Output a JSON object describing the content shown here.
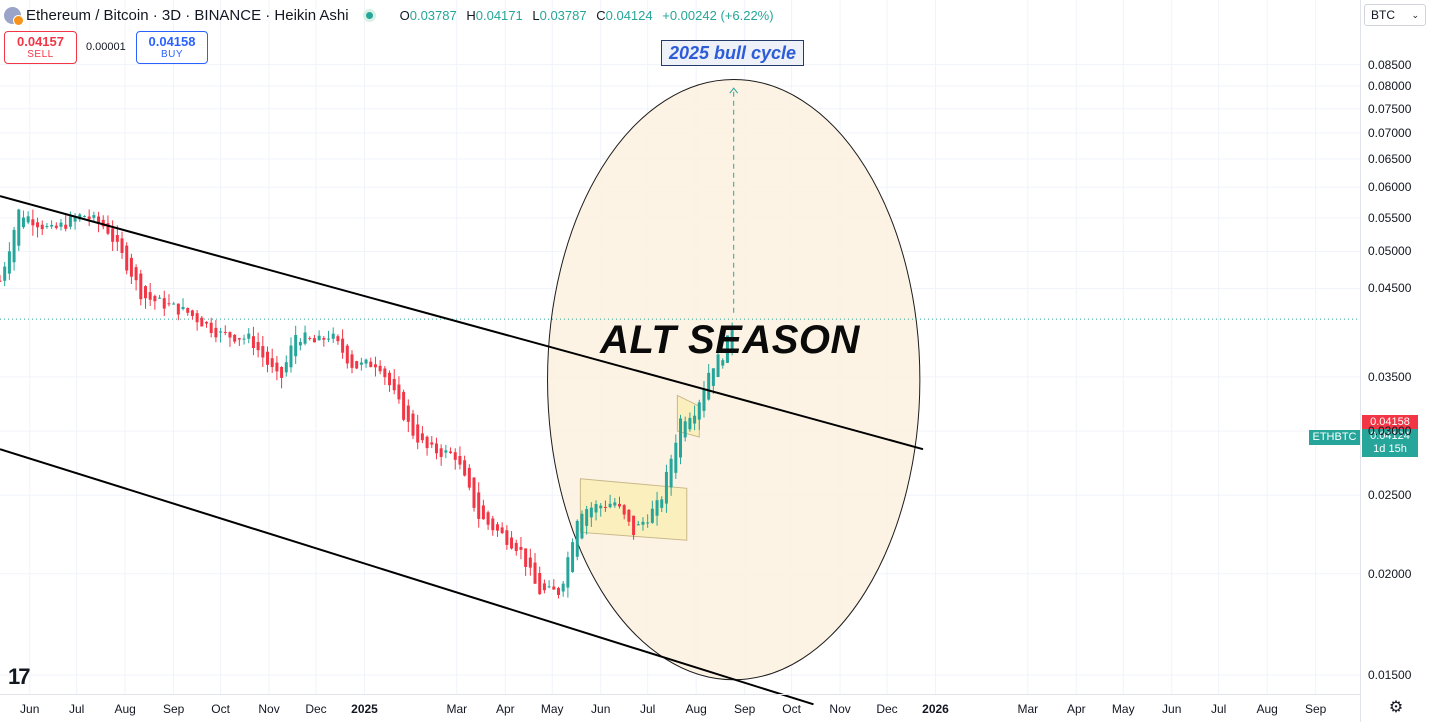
{
  "header": {
    "title": "Ethereum / Bitcoin · 3D · BINANCE · Heikin Ashi",
    "ohlc": [
      {
        "key": "O",
        "value": "0.03787"
      },
      {
        "key": "H",
        "value": "0.04171"
      },
      {
        "key": "L",
        "value": "0.03787"
      },
      {
        "key": "C",
        "value": "0.04124"
      }
    ],
    "change": "+0.00242 (+6.22%)"
  },
  "trade": {
    "sell_price": "0.04157",
    "sell_label": "SELL",
    "spread": "0.00001",
    "buy_price": "0.04158",
    "buy_label": "BUY"
  },
  "currency_select": {
    "value": "BTC",
    "icon": "chevron-down-icon"
  },
  "annotations": {
    "bull_cycle": "2025 bull cycle",
    "alt_season": "ALT SEASON"
  },
  "price_labels": {
    "symbol": "ETHBTC",
    "ask": "0.04158",
    "last": "0.04124",
    "countdown": "1d 15h"
  },
  "colors": {
    "up": "#26a69a",
    "down": "#f23645",
    "accent": "#2962ff",
    "ellipse_fill": "#fdf1df",
    "box_fill": "#fbeeb9"
  },
  "chart_data": {
    "type": "candlestick",
    "style": "Heikin Ashi",
    "symbol": "ETHBTC",
    "timeframe": "3D",
    "exchange": "BINANCE",
    "ylim": [
      0.0135,
      0.0875
    ],
    "y_scale": "log",
    "grid": true,
    "y_ticks": [
      "0.08500",
      "0.08000",
      "0.07500",
      "0.07000",
      "0.06500",
      "0.06000",
      "0.05500",
      "0.05000",
      "0.04500",
      "0.03500",
      "0.03000",
      "0.02500",
      "0.02000",
      "0.01500"
    ],
    "x_ticks": [
      {
        "label": "Jun",
        "date": "2024-06-01"
      },
      {
        "label": "Jul",
        "date": "2024-07-01"
      },
      {
        "label": "Aug",
        "date": "2024-08-01"
      },
      {
        "label": "Sep",
        "date": "2024-09-01"
      },
      {
        "label": "Oct",
        "date": "2024-10-01"
      },
      {
        "label": "Nov",
        "date": "2024-11-01"
      },
      {
        "label": "Dec",
        "date": "2024-12-01"
      },
      {
        "label": "2025",
        "date": "2025-01-01",
        "bold": true
      },
      {
        "label": "Mar",
        "date": "2025-03-01"
      },
      {
        "label": "Apr",
        "date": "2025-04-01"
      },
      {
        "label": "May",
        "date": "2025-05-01"
      },
      {
        "label": "Jun",
        "date": "2025-06-01"
      },
      {
        "label": "Jul",
        "date": "2025-07-01"
      },
      {
        "label": "Aug",
        "date": "2025-08-01"
      },
      {
        "label": "Sep",
        "date": "2025-09-01"
      },
      {
        "label": "Oct",
        "date": "2025-10-01"
      },
      {
        "label": "Nov",
        "date": "2025-11-01"
      },
      {
        "label": "Dec",
        "date": "2025-12-01"
      },
      {
        "label": "2026",
        "date": "2026-01-01",
        "bold": true
      },
      {
        "label": "Mar",
        "date": "2026-03-01"
      },
      {
        "label": "Apr",
        "date": "2026-04-01"
      },
      {
        "label": "May",
        "date": "2026-05-01"
      },
      {
        "label": "Jun",
        "date": "2026-06-01"
      },
      {
        "label": "Jul",
        "date": "2026-07-01"
      },
      {
        "label": "Aug",
        "date": "2026-08-01"
      },
      {
        "label": "Sep",
        "date": "2026-09-01"
      }
    ],
    "waypoints": [
      {
        "date": "2024-05-13",
        "close": 0.046
      },
      {
        "date": "2024-05-25",
        "close": 0.056
      },
      {
        "date": "2024-06-15",
        "close": 0.053
      },
      {
        "date": "2024-07-05",
        "close": 0.0555
      },
      {
        "date": "2024-07-20",
        "close": 0.0535
      },
      {
        "date": "2024-08-05",
        "close": 0.047
      },
      {
        "date": "2024-08-12",
        "close": 0.044
      },
      {
        "date": "2024-09-10",
        "close": 0.042
      },
      {
        "date": "2024-10-01",
        "close": 0.0395
      },
      {
        "date": "2024-10-20",
        "close": 0.039
      },
      {
        "date": "2024-11-08",
        "close": 0.0345
      },
      {
        "date": "2024-11-18",
        "close": 0.0395
      },
      {
        "date": "2024-12-01",
        "close": 0.0385
      },
      {
        "date": "2024-12-10",
        "close": 0.0395
      },
      {
        "date": "2024-12-25",
        "close": 0.036
      },
      {
        "date": "2025-01-10",
        "close": 0.0365
      },
      {
        "date": "2025-01-31",
        "close": 0.03
      },
      {
        "date": "2025-02-10",
        "close": 0.0285
      },
      {
        "date": "2025-02-28",
        "close": 0.028
      },
      {
        "date": "2025-03-15",
        "close": 0.0235
      },
      {
        "date": "2025-04-10",
        "close": 0.0215
      },
      {
        "date": "2025-04-22",
        "close": 0.019
      },
      {
        "date": "2025-05-06",
        "close": 0.019
      },
      {
        "date": "2025-05-18",
        "close": 0.024
      },
      {
        "date": "2025-06-10",
        "close": 0.0245
      },
      {
        "date": "2025-06-22",
        "close": 0.0225
      },
      {
        "date": "2025-07-09",
        "close": 0.0245
      },
      {
        "date": "2025-07-22",
        "close": 0.031
      },
      {
        "date": "2025-08-01",
        "close": 0.032
      },
      {
        "date": "2025-08-10",
        "close": 0.036
      },
      {
        "date": "2025-08-19",
        "close": 0.0375
      },
      {
        "date": "2025-08-25",
        "close": 0.0412
      }
    ],
    "upper_trendline": [
      {
        "date": "2024-05-13",
        "price": 0.0585
      },
      {
        "date": "2025-12-24",
        "price": 0.0285
      }
    ],
    "lower_trendline": [
      {
        "date": "2024-05-13",
        "price": 0.0285
      },
      {
        "date": "2025-10-15",
        "price": 0.0138
      }
    ],
    "alt_season_ellipse": {
      "center": {
        "date": "2025-08-25",
        "price": 0.0487
      },
      "radius_days": 119,
      "price_top": 0.0815,
      "price_bottom": 0.0148
    },
    "consolidation_box": {
      "from": "2025-05-19",
      "to": "2025-07-26",
      "top_start": 0.0262,
      "top_end": 0.0255,
      "bottom_start": 0.0225,
      "bottom_end": 0.022
    },
    "flag_box": {
      "from": "2025-07-20",
      "to": "2025-08-03",
      "top_start": 0.0332,
      "top_end": 0.0322,
      "bottom_start": 0.03,
      "bottom_end": 0.0295
    },
    "target_arrow": {
      "date": "2025-08-25",
      "from_price": 0.042,
      "to_price": 0.0795
    },
    "last_price": 0.04124
  }
}
